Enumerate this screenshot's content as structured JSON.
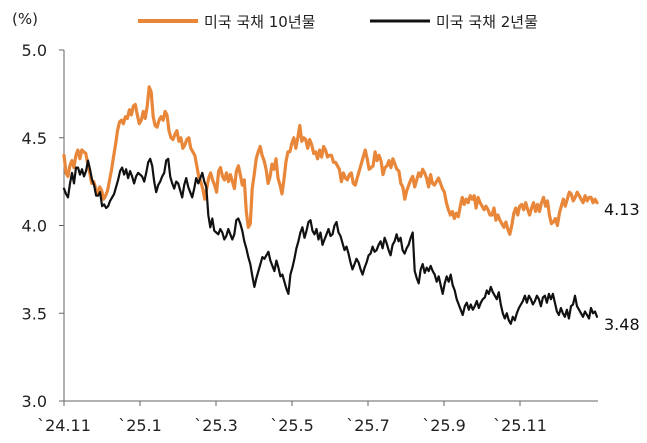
{
  "chart_data": {
    "type": "line",
    "title": "",
    "xlabel": "",
    "ylabel": "",
    "unit": "(%)",
    "ylim": [
      3.0,
      5.0
    ],
    "yticks": [
      "3.0",
      "3.5",
      "4.0",
      "4.5",
      "5.0"
    ],
    "xticks": [
      "`24.11",
      "`25.1",
      "`25.3",
      "`25.5",
      "`25.7",
      "`25.9",
      "`25.11"
    ],
    "grid": false,
    "legend_position": "top",
    "series": [
      {
        "name": "미국 국채 10년물",
        "color": "#E8873A",
        "end_label": "4.13",
        "values": [
          4.4,
          4.3,
          4.28,
          4.34,
          4.37,
          4.33,
          4.4,
          4.43,
          4.38,
          4.43,
          4.42,
          4.41,
          4.35,
          4.3,
          4.24,
          4.25,
          4.21,
          4.18,
          4.22,
          4.2,
          4.15,
          4.17,
          4.2,
          4.26,
          4.32,
          4.39,
          4.46,
          4.54,
          4.59,
          4.6,
          4.58,
          4.62,
          4.61,
          4.66,
          4.63,
          4.68,
          4.69,
          4.63,
          4.58,
          4.6,
          4.65,
          4.61,
          4.68,
          4.79,
          4.76,
          4.62,
          4.57,
          4.56,
          4.6,
          4.62,
          4.6,
          4.65,
          4.63,
          4.54,
          4.5,
          4.49,
          4.52,
          4.54,
          4.48,
          4.5,
          4.44,
          4.46,
          4.49,
          4.5,
          4.44,
          4.42,
          4.4,
          4.34,
          4.28,
          4.25,
          4.21,
          4.15,
          4.21,
          4.27,
          4.3,
          4.26,
          4.23,
          4.19,
          4.31,
          4.33,
          4.28,
          4.26,
          4.3,
          4.25,
          4.29,
          4.25,
          4.21,
          4.31,
          4.34,
          4.29,
          4.23,
          4.26,
          4.08,
          3.99,
          4.01,
          4.21,
          4.29,
          4.38,
          4.42,
          4.45,
          4.4,
          4.37,
          4.32,
          4.24,
          4.28,
          4.35,
          4.32,
          4.38,
          4.27,
          4.23,
          4.18,
          4.26,
          4.36,
          4.42,
          4.42,
          4.47,
          4.5,
          4.44,
          4.5,
          4.57,
          4.48,
          4.5,
          4.49,
          4.44,
          4.49,
          4.46,
          4.41,
          4.42,
          4.38,
          4.43,
          4.39,
          4.45,
          4.43,
          4.39,
          4.4,
          4.4,
          4.36,
          4.36,
          4.34,
          4.32,
          4.25,
          4.3,
          4.27,
          4.26,
          4.29,
          4.3,
          4.24,
          4.23,
          4.27,
          4.31,
          4.35,
          4.39,
          4.43,
          4.38,
          4.32,
          4.33,
          4.34,
          4.42,
          4.37,
          4.4,
          4.37,
          4.29,
          4.33,
          4.34,
          4.37,
          4.33,
          4.38,
          4.35,
          4.32,
          4.31,
          4.24,
          4.22,
          4.15,
          4.2,
          4.23,
          4.26,
          4.28,
          4.22,
          4.26,
          4.3,
          4.28,
          4.32,
          4.3,
          4.27,
          4.22,
          4.29,
          4.24,
          4.23,
          4.25,
          4.27,
          4.24,
          4.21,
          4.19,
          4.13,
          4.09,
          4.06,
          4.08,
          4.04,
          4.07,
          4.05,
          4.11,
          4.16,
          4.12,
          4.15,
          4.13,
          4.17,
          4.15,
          4.17,
          4.1,
          4.16,
          4.13,
          4.11,
          4.09,
          4.11,
          4.09,
          4.06,
          4.06,
          4.1,
          4.03,
          4.06,
          4.03,
          4.01,
          3.99,
          4.02,
          3.98,
          3.95,
          4.0,
          4.07,
          4.1,
          4.06,
          4.11,
          4.12,
          4.09,
          4.13,
          4.09,
          4.06,
          4.1,
          4.13,
          4.08,
          4.12,
          4.08,
          4.13,
          4.16,
          4.11,
          4.14,
          4.06,
          4.01,
          4.02,
          4.04,
          4.0,
          4.07,
          4.11,
          4.15,
          4.11,
          4.15,
          4.19,
          4.18,
          4.14,
          4.16,
          4.19,
          4.17,
          4.15,
          4.13,
          4.17,
          4.14,
          4.16,
          4.16,
          4.13,
          4.15,
          4.13
        ]
      },
      {
        "name": "미국 국채 2년물",
        "color": "#111111",
        "end_label": "3.48",
        "values": [
          4.21,
          4.18,
          4.16,
          4.24,
          4.3,
          4.24,
          4.33,
          4.33,
          4.29,
          4.32,
          4.28,
          4.31,
          4.37,
          4.32,
          4.26,
          4.23,
          4.17,
          4.17,
          4.19,
          4.11,
          4.12,
          4.1,
          4.11,
          4.14,
          4.16,
          4.18,
          4.22,
          4.26,
          4.31,
          4.33,
          4.29,
          4.32,
          4.27,
          4.31,
          4.28,
          4.24,
          4.28,
          4.3,
          4.29,
          4.28,
          4.25,
          4.3,
          4.36,
          4.38,
          4.34,
          4.25,
          4.19,
          4.23,
          4.25,
          4.28,
          4.3,
          4.37,
          4.38,
          4.28,
          4.24,
          4.21,
          4.25,
          4.24,
          4.2,
          4.16,
          4.23,
          4.27,
          4.22,
          4.19,
          4.16,
          4.21,
          4.27,
          4.24,
          4.27,
          4.3,
          4.25,
          4.22,
          4.06,
          3.99,
          4.04,
          3.97,
          3.96,
          3.95,
          3.98,
          3.96,
          3.92,
          3.94,
          3.98,
          3.95,
          3.92,
          3.95,
          4.03,
          4.04,
          4.01,
          3.97,
          3.91,
          3.87,
          3.82,
          3.78,
          3.71,
          3.65,
          3.7,
          3.74,
          3.78,
          3.82,
          3.81,
          3.83,
          3.85,
          3.8,
          3.77,
          3.74,
          3.8,
          3.76,
          3.71,
          3.72,
          3.68,
          3.64,
          3.61,
          3.72,
          3.76,
          3.81,
          3.87,
          3.91,
          3.96,
          3.99,
          3.93,
          3.97,
          4.02,
          4.03,
          3.97,
          3.95,
          3.98,
          3.92,
          3.96,
          3.89,
          3.92,
          3.95,
          3.98,
          3.94,
          3.95,
          4.0,
          4.02,
          3.96,
          3.94,
          3.9,
          3.86,
          3.88,
          3.84,
          3.79,
          3.75,
          3.78,
          3.81,
          3.79,
          3.75,
          3.72,
          3.76,
          3.79,
          3.83,
          3.84,
          3.88,
          3.85,
          3.86,
          3.89,
          3.91,
          3.87,
          3.93,
          3.9,
          3.86,
          3.83,
          3.89,
          3.91,
          3.95,
          3.91,
          3.93,
          3.86,
          3.84,
          3.87,
          3.89,
          3.93,
          3.96,
          3.74,
          3.7,
          3.67,
          3.75,
          3.78,
          3.73,
          3.76,
          3.74,
          3.77,
          3.74,
          3.72,
          3.68,
          3.71,
          3.66,
          3.61,
          3.67,
          3.71,
          3.68,
          3.72,
          3.66,
          3.63,
          3.58,
          3.55,
          3.52,
          3.49,
          3.54,
          3.56,
          3.52,
          3.55,
          3.52,
          3.54,
          3.57,
          3.53,
          3.56,
          3.58,
          3.59,
          3.63,
          3.61,
          3.65,
          3.62,
          3.6,
          3.58,
          3.62,
          3.55,
          3.5,
          3.47,
          3.5,
          3.46,
          3.44,
          3.48,
          3.46,
          3.5,
          3.53,
          3.55,
          3.57,
          3.6,
          3.56,
          3.6,
          3.58,
          3.55,
          3.57,
          3.6,
          3.58,
          3.54,
          3.59,
          3.6,
          3.56,
          3.61,
          3.58,
          3.61,
          3.56,
          3.51,
          3.49,
          3.53,
          3.5,
          3.48,
          3.52,
          3.47,
          3.54,
          3.55,
          3.6,
          3.54,
          3.52,
          3.5,
          3.48,
          3.51,
          3.49,
          3.47,
          3.53,
          3.5,
          3.51,
          3.48
        ]
      }
    ]
  }
}
